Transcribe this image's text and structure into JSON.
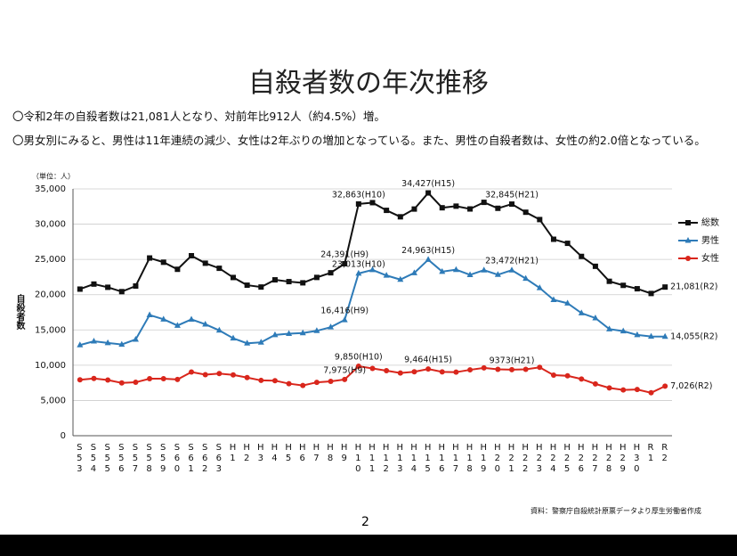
{
  "header": {
    "title": "自殺者数の年次推移",
    "bullets": [
      "〇令和2年の自殺者数は21,081人となり、対前年比912人（約4.5%）増。",
      "〇男女別にみると、男性は11年連続の減少、女性は2年ぶりの増加となっている。また、男性の自殺者数は、女性の約2.0倍となっている。"
    ]
  },
  "chart_data": {
    "type": "line",
    "unit_label": "（単位：人）",
    "y_label": "自殺者数",
    "grid": true,
    "legend": "right",
    "categories": [
      "S53",
      "S54",
      "S55",
      "S56",
      "S57",
      "S58",
      "S59",
      "S60",
      "S61",
      "S62",
      "S63",
      "H1",
      "H2",
      "H3",
      "H4",
      "H5",
      "H6",
      "H7",
      "H8",
      "H9",
      "H10",
      "H11",
      "H12",
      "H13",
      "H14",
      "H15",
      "H16",
      "H17",
      "H18",
      "H19",
      "H20",
      "H21",
      "H22",
      "H23",
      "H24",
      "H25",
      "H26",
      "H27",
      "H28",
      "H29",
      "H30",
      "R1",
      "R2"
    ],
    "ylim": [
      0,
      35000
    ],
    "yticks": [
      0,
      {
        "value": 5000,
        "label": "5,000"
      },
      {
        "value": 10000,
        "label": "10,000"
      },
      {
        "value": 15000,
        "label": "15,000"
      },
      {
        "value": 20000,
        "label": "20,000"
      },
      {
        "value": 25000,
        "label": "25,000"
      },
      {
        "value": 30000,
        "label": "30,000"
      },
      {
        "value": 35000,
        "label": "35,000"
      }
    ],
    "series": [
      {
        "name": "総数",
        "color": "#111111",
        "marker": "square",
        "values": [
          20788,
          21503,
          21048,
          20434,
          21228,
          25202,
          24596,
          23599,
          25524,
          24460,
          23742,
          22436,
          21346,
          21084,
          22104,
          21851,
          21679,
          22445,
          23104,
          24391,
          32863,
          33048,
          31957,
          31042,
          32143,
          34427,
          32325,
          32552,
          32155,
          33093,
          32249,
          32845,
          31690,
          30651,
          27858,
          27283,
          25427,
          24025,
          21897,
          21321,
          20840,
          20169,
          21081
        ],
        "value_labels": [
          null,
          null,
          null,
          null,
          null,
          null,
          null,
          null,
          null,
          null,
          null,
          null,
          null,
          null,
          null,
          null,
          null,
          null,
          null,
          "24,391(H9)",
          "32,863(H10)",
          null,
          null,
          null,
          null,
          "34,427(H15)",
          null,
          null,
          null,
          null,
          null,
          "32,845(H21)",
          null,
          null,
          null,
          null,
          null,
          null,
          null,
          null,
          null,
          null,
          "21,081(R2)"
        ]
      },
      {
        "name": "男性",
        "color": "#2e7bb8",
        "marker": "triangle",
        "values": [
          12859,
          13386,
          13155,
          12942,
          13654,
          17116,
          16508,
          15624,
          16497,
          15802,
          14934,
          13818,
          13102,
          13242,
          14296,
          14468,
          14560,
          14874,
          15393,
          16416,
          23013,
          23512,
          22727,
          22144,
          23080,
          24963,
          23272,
          23540,
          22813,
          23478,
          22831,
          23472,
          22283,
          20955,
          19273,
          18787,
          17386,
          16681,
          15121,
          14826,
          14290,
          14078,
          14055
        ],
        "value_labels": [
          null,
          null,
          null,
          null,
          null,
          null,
          null,
          null,
          null,
          null,
          null,
          null,
          null,
          null,
          null,
          null,
          null,
          null,
          null,
          "16,416(H9)",
          "23,013(H10)",
          null,
          null,
          null,
          null,
          "24,963(H15)",
          null,
          null,
          null,
          null,
          null,
          "23,472(H21)",
          null,
          null,
          null,
          null,
          null,
          null,
          null,
          null,
          null,
          null,
          "14,055(R2)"
        ]
      },
      {
        "name": "女性",
        "color": "#d9261c",
        "marker": "circle",
        "values": [
          7929,
          8117,
          7893,
          7492,
          7574,
          8086,
          8088,
          7975,
          9027,
          8658,
          8808,
          8618,
          8244,
          7842,
          7808,
          7383,
          7119,
          7571,
          7711,
          7975,
          9850,
          9536,
          9230,
          8898,
          9063,
          9464,
          9053,
          9012,
          9342,
          9615,
          9418,
          9373,
          9407,
          9696,
          8585,
          8496,
          8041,
          7344,
          6776,
          6495,
          6550,
          6091,
          7026
        ],
        "value_labels": [
          null,
          null,
          null,
          null,
          null,
          null,
          null,
          null,
          null,
          null,
          null,
          null,
          null,
          null,
          null,
          null,
          null,
          null,
          null,
          "7,975(H9)",
          "9,850(H10)",
          null,
          null,
          null,
          null,
          "9,464(H15)",
          null,
          null,
          null,
          null,
          null,
          "9373(H21)",
          null,
          null,
          null,
          null,
          null,
          null,
          null,
          null,
          null,
          null,
          "7,026(R2)"
        ]
      }
    ]
  },
  "footer": {
    "source": "資料：警察庁自殺統計原票データより厚生労働省作成",
    "page": "2"
  }
}
